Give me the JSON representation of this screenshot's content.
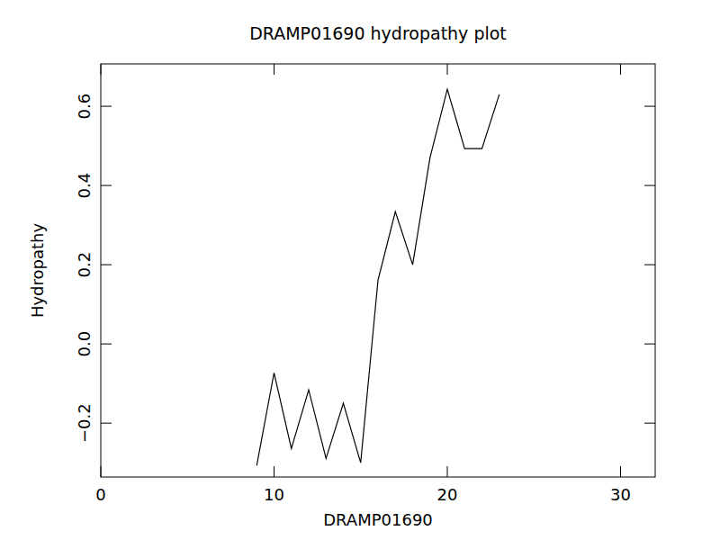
{
  "chart_data": {
    "type": "line",
    "title": "DRAMP01690 hydropathy plot",
    "x_label": "DRAMP01690",
    "y_label": "Hydropathy",
    "x": [
      9,
      10,
      11,
      12,
      13,
      14,
      15,
      16,
      17,
      18,
      19,
      20,
      21,
      22,
      23
    ],
    "series": [
      {
        "name": "Hydropathy",
        "color": "#000000",
        "values": [
          -0.307,
          -0.073,
          -0.264,
          -0.116,
          -0.289,
          -0.15,
          -0.3,
          0.161,
          0.334,
          0.2,
          0.47,
          0.643,
          0.493,
          0.493,
          0.63
        ]
      }
    ],
    "xlim": [
      0,
      32
    ],
    "xticks": [
      0,
      10,
      20,
      30
    ],
    "ylim": [
      -0.336,
      0.707
    ],
    "yticks": [
      {
        "value": -0.2,
        "label": "−0.2"
      },
      {
        "value": 0,
        "label": "0.0"
      },
      0.2,
      0.4,
      0.6
    ],
    "grid": false
  }
}
